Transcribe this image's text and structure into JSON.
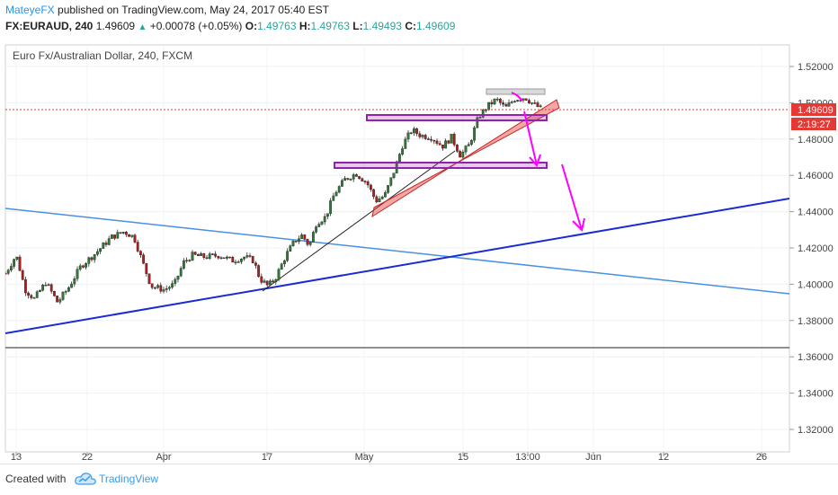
{
  "header": {
    "username": "MateyeFX",
    "published_text": "published on TradingView.com, May 24, 2017 05:40 EST",
    "symbol": "FX:EURAUD, 240",
    "last": "1.49609",
    "change": "+0.00078 (+0.05%)",
    "o_label": "O:",
    "o_value": "1.49763",
    "h_label": "H:",
    "h_value": "1.49763",
    "l_label": "L:",
    "l_value": "1.49493",
    "c_label": "C:",
    "c_value": "1.49609"
  },
  "footer": {
    "created_with": "Created with",
    "brand": "TradingView"
  },
  "colors": {
    "up": "#26a69a",
    "down": "#ef5350",
    "support": "#1a2bd4",
    "trend": "#4a90e2",
    "arrow": "#ff00ff",
    "zone": "#9c27b0",
    "price_line": "#e53935"
  },
  "chart_data": {
    "type": "candlestick",
    "title": "Euro Fx/Australian Dollar, 240, FXCM",
    "ylim": [
      1.31,
      1.53
    ],
    "y_ticks": [
      "1.52000",
      "1.50000",
      "1.48000",
      "1.46000",
      "1.44000",
      "1.42000",
      "1.40000",
      "1.38000",
      "1.36000",
      "1.34000",
      "1.32000"
    ],
    "x_ticks": [
      "13",
      "22",
      "Apr",
      "17",
      "May",
      "15",
      "13:00",
      "Jun",
      "12",
      "26"
    ],
    "last_price_label": "1.49609",
    "countdown_label": "2:19:27",
    "path": [
      [
        0,
        1.406
      ],
      [
        12,
        1.416
      ],
      [
        22,
        1.397
      ],
      [
        32,
        1.392
      ],
      [
        45,
        1.401
      ],
      [
        58,
        1.39
      ],
      [
        70,
        1.398
      ],
      [
        84,
        1.41
      ],
      [
        100,
        1.417
      ],
      [
        118,
        1.426
      ],
      [
        132,
        1.429
      ],
      [
        143,
        1.426
      ],
      [
        152,
        1.413
      ],
      [
        162,
        1.399
      ],
      [
        176,
        1.397
      ],
      [
        188,
        1.4
      ],
      [
        198,
        1.412
      ],
      [
        208,
        1.416
      ],
      [
        222,
        1.415
      ],
      [
        238,
        1.416
      ],
      [
        252,
        1.413
      ],
      [
        266,
        1.415
      ],
      [
        276,
        1.413
      ],
      [
        283,
        1.403
      ],
      [
        292,
        1.399
      ],
      [
        300,
        1.403
      ],
      [
        312,
        1.416
      ],
      [
        322,
        1.424
      ],
      [
        330,
        1.427
      ],
      [
        338,
        1.421
      ],
      [
        346,
        1.434
      ],
      [
        356,
        1.437
      ],
      [
        366,
        1.45
      ],
      [
        378,
        1.458
      ],
      [
        390,
        1.461
      ],
      [
        402,
        1.456
      ],
      [
        412,
        1.446
      ],
      [
        422,
        1.449
      ],
      [
        432,
        1.462
      ],
      [
        442,
        1.477
      ],
      [
        452,
        1.485
      ],
      [
        462,
        1.482
      ],
      [
        474,
        1.481
      ],
      [
        486,
        1.476
      ],
      [
        496,
        1.481
      ],
      [
        506,
        1.471
      ],
      [
        516,
        1.477
      ],
      [
        526,
        1.492
      ],
      [
        536,
        1.498
      ],
      [
        546,
        1.502
      ],
      [
        556,
        1.497
      ],
      [
        566,
        1.502
      ],
      [
        578,
        1.503
      ],
      [
        588,
        1.499
      ],
      [
        598,
        1.496
      ]
    ]
  }
}
